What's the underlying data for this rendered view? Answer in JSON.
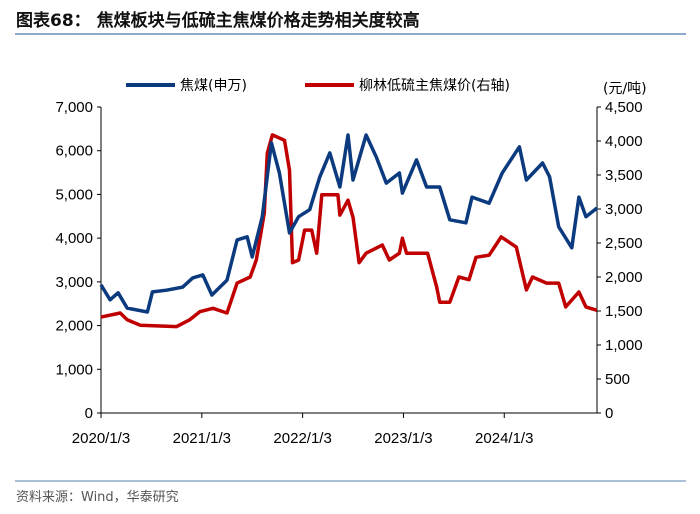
{
  "chart_data": {
    "type": "line",
    "title": "图表68：  焦煤板块与低硫主焦煤价格走势相关度较高",
    "source": "资料来源：Wind，华泰研究",
    "right_unit": "(元/吨)",
    "legend_position": "top",
    "x_ticks": [
      {
        "value": 2020.0,
        "label": "2020/1/3"
      },
      {
        "value": 2021.0,
        "label": "2021/1/3"
      },
      {
        "value": 2022.0,
        "label": "2022/1/3"
      },
      {
        "value": 2023.0,
        "label": "2023/1/3"
      },
      {
        "value": 2024.0,
        "label": "2024/1/3"
      }
    ],
    "xlim": [
      2020.0,
      2024.92
    ],
    "y_left": {
      "lim": [
        0,
        7000
      ],
      "ticks": [
        0,
        1000,
        2000,
        3000,
        4000,
        5000,
        6000,
        7000
      ],
      "labels": [
        "0",
        "1,000",
        "2,000",
        "3,000",
        "4,000",
        "5,000",
        "6,000",
        "7,000"
      ]
    },
    "y_right": {
      "lim": [
        0,
        4500
      ],
      "ticks": [
        0,
        500,
        1000,
        1500,
        2000,
        2500,
        3000,
        3500,
        4000,
        4500
      ],
      "labels": [
        "0",
        "500",
        "1,000",
        "1,500",
        "2,000",
        "2,500",
        "3,000",
        "3,500",
        "4,000",
        "4,500"
      ]
    },
    "grid": false,
    "series": [
      {
        "name": "焦煤(申万)",
        "axis": "left",
        "color": "#0b3a7e",
        "x": [
          2020.0,
          2020.09,
          2020.17,
          2020.26,
          2020.46,
          2020.51,
          2020.65,
          2020.81,
          2020.91,
          2021.01,
          2021.1,
          2021.25,
          2021.35,
          2021.45,
          2021.5,
          2021.6,
          2021.69,
          2021.77,
          2021.87,
          2021.96,
          2022.07,
          2022.17,
          2022.27,
          2022.37,
          2022.45,
          2022.5,
          2022.63,
          2022.73,
          2022.83,
          2022.96,
          2022.99,
          2023.13,
          2023.23,
          2023.36,
          2023.46,
          2023.62,
          2023.68,
          2023.85,
          2023.98,
          2024.15,
          2024.22,
          2024.38,
          2024.45,
          2024.54,
          2024.67,
          2024.74,
          2024.81,
          2024.92
        ],
        "y": [
          2930,
          2590,
          2750,
          2400,
          2310,
          2770,
          2810,
          2880,
          3090,
          3160,
          2700,
          3040,
          3960,
          4030,
          3570,
          4490,
          6180,
          5490,
          4120,
          4490,
          4650,
          5400,
          5950,
          5170,
          6360,
          5330,
          6360,
          5860,
          5260,
          5490,
          5030,
          5790,
          5170,
          5170,
          4420,
          4350,
          4940,
          4800,
          5490,
          6090,
          5330,
          5720,
          5400,
          4260,
          3780,
          4940,
          4490,
          4690
        ]
      },
      {
        "name": "柳林低硫主焦煤价(右轴)",
        "axis": "right",
        "color": "#c00000",
        "x": [
          2020.0,
          2020.19,
          2020.26,
          2020.39,
          2020.75,
          2020.88,
          2020.98,
          2021.11,
          2021.25,
          2021.35,
          2021.48,
          2021.54,
          2021.62,
          2021.65,
          2021.7,
          2021.82,
          2021.87,
          2021.9,
          2021.96,
          2022.02,
          2022.09,
          2022.14,
          2022.19,
          2022.35,
          2022.37,
          2022.45,
          2022.5,
          2022.56,
          2022.63,
          2022.79,
          2022.86,
          2022.96,
          2022.99,
          2023.03,
          2023.24,
          2023.33,
          2023.36,
          2023.46,
          2023.55,
          2023.65,
          2023.72,
          2023.85,
          2023.97,
          2024.12,
          2024.22,
          2024.28,
          2024.42,
          2024.54,
          2024.61,
          2024.74,
          2024.81,
          2024.92
        ],
        "y": [
          1410,
          1470,
          1370,
          1290,
          1270,
          1370,
          1490,
          1540,
          1470,
          1910,
          2000,
          2250,
          2940,
          3820,
          4090,
          4010,
          3570,
          2210,
          2250,
          2690,
          2690,
          2350,
          3210,
          3210,
          2910,
          3130,
          2880,
          2210,
          2350,
          2470,
          2250,
          2350,
          2570,
          2350,
          2350,
          1850,
          1630,
          1630,
          2000,
          1960,
          2290,
          2320,
          2590,
          2440,
          1810,
          2000,
          1910,
          1910,
          1560,
          1780,
          1560,
          1510
        ]
      }
    ]
  }
}
